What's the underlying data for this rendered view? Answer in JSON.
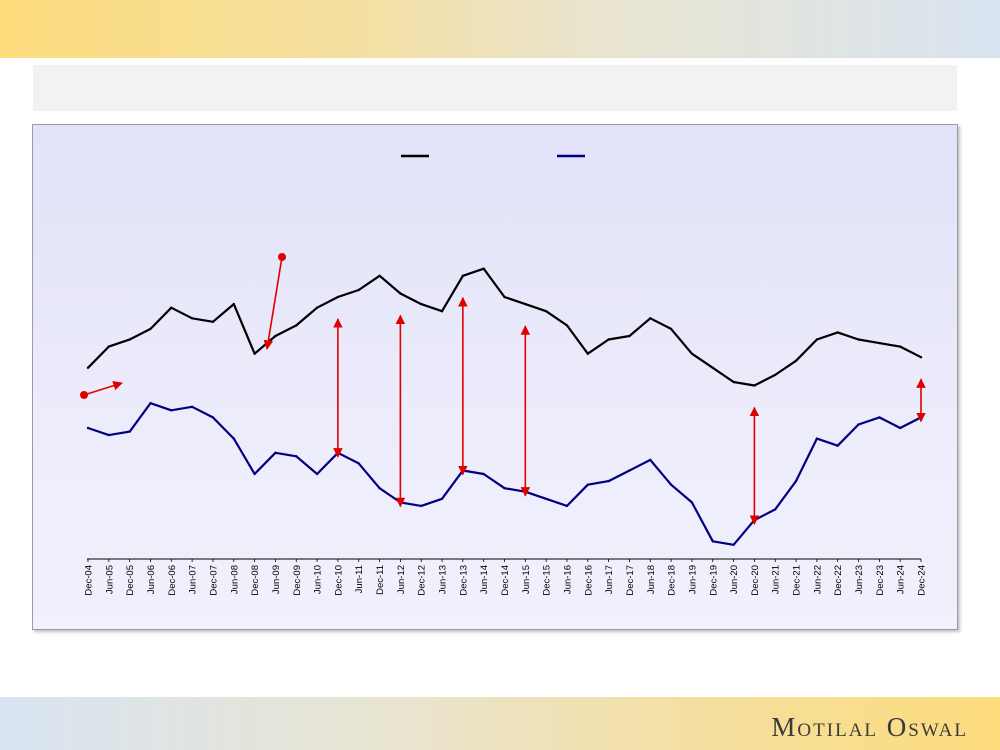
{
  "brand": {
    "name": "Motilal Oswal"
  },
  "chart_data": {
    "type": "line",
    "title": "",
    "xlabel": "",
    "ylabel": "",
    "x": [
      "Dec-04",
      "Jun-05",
      "Dec-05",
      "Jun-06",
      "Dec-06",
      "Jun-07",
      "Dec-07",
      "Jun-08",
      "Dec-08",
      "Jun-09",
      "Dec-09",
      "Jun-10",
      "Dec-10",
      "Jun-11",
      "Dec-11",
      "Jun-12",
      "Dec-12",
      "Jun-13",
      "Dec-13",
      "Jun-14",
      "Dec-14",
      "Jun-15",
      "Dec-15",
      "Jun-16",
      "Dec-16",
      "Jun-17",
      "Dec-17",
      "Jun-18",
      "Dec-18",
      "Jun-19",
      "Dec-19",
      "Jun-20",
      "Dec-20",
      "Jun-21",
      "Dec-21",
      "Jun-22",
      "Dec-22",
      "Jun-23",
      "Dec-23",
      "Jun-24",
      "Dec-24"
    ],
    "series": [
      {
        "color": "#000000",
        "values": [
          44,
          50,
          52,
          55,
          61,
          58,
          57,
          62,
          48,
          53,
          56,
          61,
          64,
          66,
          70,
          65,
          62,
          60,
          70,
          72,
          64,
          62,
          60,
          56,
          48,
          52,
          53,
          58,
          55,
          48,
          44,
          40,
          39,
          42,
          46,
          52,
          54,
          52,
          51,
          50,
          47
        ]
      },
      {
        "color": "#000080",
        "values": [
          27,
          25,
          26,
          34,
          32,
          33,
          30,
          24,
          14,
          20,
          19,
          14,
          20,
          17,
          10,
          6,
          5,
          7,
          15,
          14,
          10,
          9,
          7,
          5,
          11,
          12,
          15,
          18,
          11,
          6,
          -5,
          -6,
          1,
          4,
          12,
          24,
          22,
          28,
          30,
          27,
          30
        ]
      }
    ],
    "ylim": [
      -10,
      90
    ],
    "grid": false,
    "legend": "top-center"
  }
}
